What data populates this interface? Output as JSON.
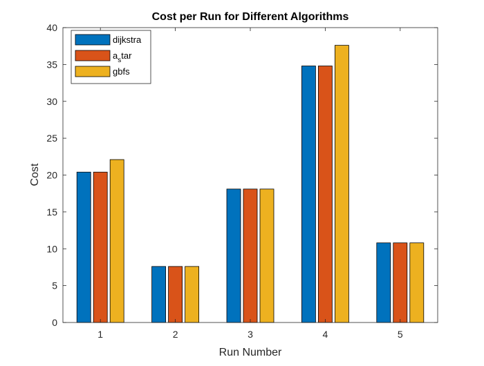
{
  "chart_data": {
    "type": "bar",
    "title": "Cost per Run for Different Algorithms",
    "xlabel": "Run Number",
    "ylabel": "Cost",
    "categories": [
      "1",
      "2",
      "3",
      "4",
      "5"
    ],
    "ylim": [
      0,
      40
    ],
    "yticks": [
      0,
      5,
      10,
      15,
      20,
      25,
      30,
      35,
      40
    ],
    "legend_position": "top-left",
    "grid": false,
    "series": [
      {
        "name": "dijkstra",
        "color": "#0072BD",
        "values": [
          20.4,
          7.6,
          18.1,
          34.8,
          10.8
        ]
      },
      {
        "name": "a_star",
        "display_base": "a",
        "display_sub": "s",
        "display_rest": "tar",
        "color": "#D95319",
        "values": [
          20.4,
          7.6,
          18.1,
          34.8,
          10.8
        ]
      },
      {
        "name": "gbfs",
        "color": "#EDB120",
        "values": [
          22.1,
          7.6,
          18.1,
          37.6,
          10.8
        ]
      }
    ]
  }
}
